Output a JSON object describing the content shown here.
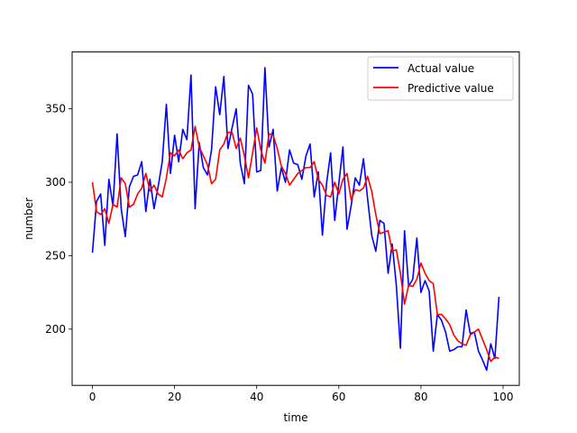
{
  "chart_data": {
    "type": "line",
    "title": "",
    "xlabel": "time",
    "ylabel": "number",
    "xlim": [
      -4.95,
      103.95
    ],
    "ylim": [
      161.7,
      388.7
    ],
    "xticks": [
      0,
      20,
      40,
      60,
      80,
      100
    ],
    "yticks": [
      200,
      250,
      300,
      350
    ],
    "grid": false,
    "legend_position": "top-right",
    "x": [
      0,
      1,
      2,
      3,
      4,
      5,
      6,
      7,
      8,
      9,
      10,
      11,
      12,
      13,
      14,
      15,
      16,
      17,
      18,
      19,
      20,
      21,
      22,
      23,
      24,
      25,
      26,
      27,
      28,
      29,
      30,
      31,
      32,
      33,
      34,
      35,
      36,
      37,
      38,
      39,
      40,
      41,
      42,
      43,
      44,
      45,
      46,
      47,
      48,
      49,
      50,
      51,
      52,
      53,
      54,
      55,
      56,
      57,
      58,
      59,
      60,
      61,
      62,
      63,
      64,
      65,
      66,
      67,
      68,
      69,
      70,
      71,
      72,
      73,
      74,
      75,
      76,
      77,
      78,
      79,
      80,
      81,
      82,
      83,
      84,
      85,
      86,
      87,
      88,
      89,
      90,
      91,
      92,
      93,
      94,
      95,
      96,
      97,
      98,
      99
    ],
    "series": [
      {
        "name": "Actual value",
        "color": "#0000ff",
        "values": [
          252,
          287,
          292,
          257,
          302,
          284,
          333,
          282,
          263,
          297,
          304,
          305,
          314,
          280,
          302,
          282,
          297,
          314,
          353,
          306,
          332,
          314,
          336,
          329,
          373,
          282,
          327,
          310,
          305,
          322,
          365,
          346,
          372,
          323,
          337,
          350,
          313,
          299,
          366,
          360,
          307,
          308,
          378,
          324,
          336,
          294,
          310,
          300,
          322,
          313,
          312,
          302,
          318,
          326,
          290,
          307,
          264,
          299,
          320,
          274,
          299,
          324,
          268,
          284,
          303,
          298,
          316,
          289,
          264,
          253,
          274,
          272,
          238,
          258,
          230,
          187,
          267,
          229,
          234,
          262,
          225,
          233,
          226,
          185,
          210,
          206,
          198,
          185,
          186,
          188,
          188,
          213,
          197,
          198,
          185,
          179,
          172,
          190,
          180,
          222
        ]
      },
      {
        "name": "Predictive value",
        "color": "#ff0000",
        "values": [
          300,
          280,
          278,
          282,
          272,
          285,
          283,
          303,
          299,
          283,
          285,
          292,
          296,
          306,
          294,
          298,
          292,
          290,
          303,
          320,
          318,
          322,
          316,
          320,
          322,
          338,
          324,
          318,
          312,
          299,
          302,
          322,
          326,
          334,
          334,
          323,
          330,
          318,
          303,
          320,
          337,
          322,
          313,
          333,
          332,
          323,
          311,
          306,
          298,
          302,
          306,
          308,
          310,
          310,
          314,
          302,
          298,
          291,
          290,
          300,
          292,
          302,
          306,
          288,
          295,
          294,
          296,
          304,
          294,
          278,
          265,
          266,
          267,
          253,
          254,
          238,
          217,
          230,
          229,
          234,
          245,
          238,
          233,
          231,
          210,
          210,
          207,
          203,
          196,
          192,
          190,
          189,
          196,
          198,
          200,
          193,
          186,
          178,
          181,
          180
        ]
      }
    ]
  }
}
